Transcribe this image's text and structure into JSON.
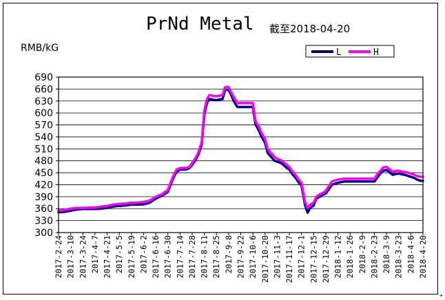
{
  "title": "PrNd Metal",
  "date_note": "截至2018-04-20",
  "ylabel": "RMB/kG",
  "corner_mark": "+",
  "colors": {
    "L": "#000080",
    "H": "#ff00ff",
    "grid": "#000000",
    "background": "#ffffff"
  },
  "chart_data": {
    "type": "line",
    "title": "PrNd Metal",
    "subtitle": "截至2018-04-20",
    "ylabel": "RMB/kG",
    "xlabel": "",
    "ylim": [
      300,
      690
    ],
    "yticks": [
      300,
      330,
      360,
      390,
      420,
      450,
      480,
      510,
      540,
      570,
      600,
      630,
      660,
      690
    ],
    "xlim": [
      "2017-2-24",
      "2018-4-20"
    ],
    "xticks": [
      "2017-2-24",
      "2017-3-10",
      "2017-3-24",
      "2017-4-7",
      "2017-4-21",
      "2017-5-5",
      "2017-5-19",
      "2017-6-2",
      "2017-6-16",
      "2017-6-30",
      "2017-7-14",
      "2017-7-28",
      "2017-8-11",
      "2017-8-25",
      "2017-9-8",
      "2017-9-22",
      "2017-10-6",
      "2017-10-20",
      "2017-11-3",
      "2017-11-17",
      "2017-12-1",
      "2017-12-15",
      "2017-12-29",
      "2018-1-12",
      "2018-1-26",
      "2018-2-9",
      "2018-2-23",
      "2018-3-9",
      "2018-3-23",
      "2018-4-6",
      "2018-4-20"
    ],
    "grid": true,
    "legend_position": "top-right",
    "series": [
      {
        "name": "L",
        "color": "#000080",
        "points": [
          [
            "2017-2-24",
            351
          ],
          [
            "2017-3-3",
            352
          ],
          [
            "2017-3-10",
            355
          ],
          [
            "2017-3-17",
            358
          ],
          [
            "2017-3-24",
            359
          ],
          [
            "2017-4-7",
            359
          ],
          [
            "2017-4-14",
            360
          ],
          [
            "2017-4-21",
            362
          ],
          [
            "2017-4-28",
            365
          ],
          [
            "2017-5-5",
            367
          ],
          [
            "2017-5-12",
            368
          ],
          [
            "2017-5-19",
            370
          ],
          [
            "2017-5-26",
            370
          ],
          [
            "2017-6-2",
            371
          ],
          [
            "2017-6-9",
            375
          ],
          [
            "2017-6-16",
            385
          ],
          [
            "2017-6-23",
            392
          ],
          [
            "2017-6-30",
            402
          ],
          [
            "2017-7-3",
            420
          ],
          [
            "2017-7-7",
            440
          ],
          [
            "2017-7-10",
            452
          ],
          [
            "2017-7-14",
            458
          ],
          [
            "2017-7-21",
            458
          ],
          [
            "2017-7-25",
            462
          ],
          [
            "2017-7-28",
            470
          ],
          [
            "2017-8-1",
            482
          ],
          [
            "2017-8-4",
            495
          ],
          [
            "2017-8-8",
            520
          ],
          [
            "2017-8-11",
            595
          ],
          [
            "2017-8-14",
            625
          ],
          [
            "2017-8-17",
            635
          ],
          [
            "2017-8-21",
            633
          ],
          [
            "2017-8-25",
            632
          ],
          [
            "2017-9-1",
            635
          ],
          [
            "2017-9-4",
            658
          ],
          [
            "2017-9-8",
            658
          ],
          [
            "2017-9-11",
            645
          ],
          [
            "2017-9-14",
            630
          ],
          [
            "2017-9-18",
            615
          ],
          [
            "2017-9-22",
            615
          ],
          [
            "2017-9-29",
            615
          ],
          [
            "2017-10-2",
            615
          ],
          [
            "2017-10-6",
            615
          ],
          [
            "2017-10-9",
            572
          ],
          [
            "2017-10-13",
            555
          ],
          [
            "2017-10-16",
            540
          ],
          [
            "2017-10-20",
            525
          ],
          [
            "2017-10-23",
            500
          ],
          [
            "2017-10-27",
            490
          ],
          [
            "2017-10-31",
            480
          ],
          [
            "2017-11-3",
            478
          ],
          [
            "2017-11-7",
            475
          ],
          [
            "2017-11-10",
            470
          ],
          [
            "2017-11-14",
            462
          ],
          [
            "2017-11-17",
            458
          ],
          [
            "2017-11-21",
            445
          ],
          [
            "2017-11-24",
            438
          ],
          [
            "2017-11-28",
            425
          ],
          [
            "2017-12-1",
            418
          ],
          [
            "2017-12-5",
            370
          ],
          [
            "2017-12-8",
            350
          ],
          [
            "2017-12-11",
            362
          ],
          [
            "2017-12-15",
            368
          ],
          [
            "2017-12-18",
            385
          ],
          [
            "2017-12-22",
            390
          ],
          [
            "2017-12-26",
            395
          ],
          [
            "2017-12-29",
            398
          ],
          [
            "2018-1-2",
            410
          ],
          [
            "2018-1-5",
            420
          ],
          [
            "2018-1-12",
            425
          ],
          [
            "2018-1-19",
            428
          ],
          [
            "2018-1-26",
            428
          ],
          [
            "2018-2-2",
            428
          ],
          [
            "2018-2-9",
            428
          ],
          [
            "2018-2-16",
            428
          ],
          [
            "2018-2-23",
            428
          ],
          [
            "2018-2-27",
            440
          ],
          [
            "2018-3-2",
            448
          ],
          [
            "2018-3-5",
            455
          ],
          [
            "2018-3-9",
            457
          ],
          [
            "2018-3-12",
            452
          ],
          [
            "2018-3-16",
            445
          ],
          [
            "2018-3-20",
            447
          ],
          [
            "2018-3-23",
            448
          ],
          [
            "2018-3-27",
            446
          ],
          [
            "2018-3-30",
            445
          ],
          [
            "2018-4-3",
            442
          ],
          [
            "2018-4-6",
            440
          ],
          [
            "2018-4-10",
            437
          ],
          [
            "2018-4-13",
            433
          ],
          [
            "2018-4-17",
            430
          ],
          [
            "2018-4-20",
            430
          ]
        ]
      },
      {
        "name": "H",
        "color": "#ff00ff",
        "points": [
          [
            "2017-2-24",
            355
          ],
          [
            "2017-3-3",
            357
          ],
          [
            "2017-3-10",
            360
          ],
          [
            "2017-3-17",
            362
          ],
          [
            "2017-3-24",
            362
          ],
          [
            "2017-4-7",
            363
          ],
          [
            "2017-4-14",
            365
          ],
          [
            "2017-4-21",
            367
          ],
          [
            "2017-4-28",
            370
          ],
          [
            "2017-5-5",
            372
          ],
          [
            "2017-5-12",
            373
          ],
          [
            "2017-5-19",
            375
          ],
          [
            "2017-5-26",
            375
          ],
          [
            "2017-6-2",
            377
          ],
          [
            "2017-6-9",
            380
          ],
          [
            "2017-6-16",
            390
          ],
          [
            "2017-6-23",
            396
          ],
          [
            "2017-6-30",
            407
          ],
          [
            "2017-7-3",
            425
          ],
          [
            "2017-7-7",
            445
          ],
          [
            "2017-7-10",
            458
          ],
          [
            "2017-7-14",
            462
          ],
          [
            "2017-7-21",
            462
          ],
          [
            "2017-7-25",
            465
          ],
          [
            "2017-7-28",
            475
          ],
          [
            "2017-8-1",
            487
          ],
          [
            "2017-8-4",
            500
          ],
          [
            "2017-8-8",
            527
          ],
          [
            "2017-8-11",
            605
          ],
          [
            "2017-8-14",
            635
          ],
          [
            "2017-8-17",
            645
          ],
          [
            "2017-8-21",
            643
          ],
          [
            "2017-8-25",
            642
          ],
          [
            "2017-9-1",
            645
          ],
          [
            "2017-9-4",
            665
          ],
          [
            "2017-9-8",
            665
          ],
          [
            "2017-9-11",
            652
          ],
          [
            "2017-9-14",
            640
          ],
          [
            "2017-9-18",
            625
          ],
          [
            "2017-9-22",
            625
          ],
          [
            "2017-9-29",
            625
          ],
          [
            "2017-10-2",
            625
          ],
          [
            "2017-10-6",
            625
          ],
          [
            "2017-10-9",
            580
          ],
          [
            "2017-10-13",
            565
          ],
          [
            "2017-10-16",
            550
          ],
          [
            "2017-10-20",
            535
          ],
          [
            "2017-10-23",
            510
          ],
          [
            "2017-10-27",
            500
          ],
          [
            "2017-10-31",
            490
          ],
          [
            "2017-11-3",
            485
          ],
          [
            "2017-11-7",
            482
          ],
          [
            "2017-11-10",
            477
          ],
          [
            "2017-11-14",
            470
          ],
          [
            "2017-11-17",
            465
          ],
          [
            "2017-11-21",
            452
          ],
          [
            "2017-11-24",
            445
          ],
          [
            "2017-11-28",
            432
          ],
          [
            "2017-12-1",
            425
          ],
          [
            "2017-12-5",
            378
          ],
          [
            "2017-12-8",
            362
          ],
          [
            "2017-12-11",
            370
          ],
          [
            "2017-12-15",
            375
          ],
          [
            "2017-12-18",
            390
          ],
          [
            "2017-12-22",
            396
          ],
          [
            "2017-12-26",
            400
          ],
          [
            "2017-12-29",
            405
          ],
          [
            "2018-1-2",
            418
          ],
          [
            "2018-1-5",
            428
          ],
          [
            "2018-1-12",
            433
          ],
          [
            "2018-1-19",
            435
          ],
          [
            "2018-1-26",
            435
          ],
          [
            "2018-2-2",
            435
          ],
          [
            "2018-2-9",
            435
          ],
          [
            "2018-2-16",
            435
          ],
          [
            "2018-2-23",
            435
          ],
          [
            "2018-2-27",
            448
          ],
          [
            "2018-3-2",
            455
          ],
          [
            "2018-3-5",
            463
          ],
          [
            "2018-3-9",
            465
          ],
          [
            "2018-3-12",
            460
          ],
          [
            "2018-3-16",
            453
          ],
          [
            "2018-3-20",
            455
          ],
          [
            "2018-3-23",
            455
          ],
          [
            "2018-3-27",
            453
          ],
          [
            "2018-3-30",
            452
          ],
          [
            "2018-4-3",
            450
          ],
          [
            "2018-4-6",
            448
          ],
          [
            "2018-4-10",
            445
          ],
          [
            "2018-4-13",
            442
          ],
          [
            "2018-4-17",
            440
          ],
          [
            "2018-4-20",
            440
          ]
        ]
      }
    ]
  }
}
